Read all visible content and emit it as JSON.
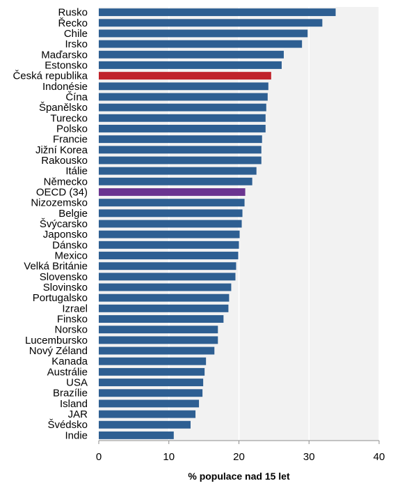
{
  "chart_data": {
    "type": "bar",
    "orientation": "horizontal",
    "title": "",
    "xlabel": "% populace nad 15 let",
    "ylabel": "",
    "xlim": [
      0,
      40
    ],
    "xticks": [
      0,
      10,
      20,
      30,
      40
    ],
    "grid": true,
    "legend": "none",
    "categories": [
      "Rusko",
      "Řecko",
      "Chile",
      "Irsko",
      "Maďarsko",
      "Estonsko",
      "Česká republika",
      "Indonésie",
      "Čína",
      "Španělsko",
      "Turecko",
      "Polsko",
      "Francie",
      "Jižní Korea",
      "Rakousko",
      "Itálie",
      "Německo",
      "OECD (34)",
      "Nizozemsko",
      "Belgie",
      "Švýcarsko",
      "Japonsko",
      "Dánsko",
      "Mexico",
      "Velká Británie",
      "Slovensko",
      "Slovinsko",
      "Portugalsko",
      "Izrael",
      "Finsko",
      "Norsko",
      "Lucembursko",
      "Nový Zéland",
      "Kanada",
      "Austrálie",
      "USA",
      "Brazílie",
      "Island",
      "JAR",
      "Švédsko",
      "Indie"
    ],
    "values": [
      33.8,
      31.9,
      29.8,
      29.0,
      26.4,
      26.1,
      24.6,
      24.2,
      24.1,
      23.9,
      23.8,
      23.8,
      23.3,
      23.2,
      23.2,
      22.5,
      21.9,
      20.9,
      20.8,
      20.5,
      20.4,
      20.1,
      20.0,
      19.9,
      19.6,
      19.5,
      18.9,
      18.6,
      18.5,
      17.8,
      17.0,
      17.0,
      16.5,
      15.3,
      15.1,
      14.9,
      14.8,
      14.3,
      13.8,
      13.1,
      10.7
    ],
    "colors": {
      "default": "#2e5f92",
      "highlight_czech": "#c0232b",
      "highlight_oecd": "#6b3590",
      "plot_background": "#f2f2f2",
      "gridline": "#ffffff",
      "axis": "#8c8c8c"
    },
    "highlights": {
      "Česká republika": "highlight_czech",
      "OECD (34)": "highlight_oecd"
    }
  }
}
